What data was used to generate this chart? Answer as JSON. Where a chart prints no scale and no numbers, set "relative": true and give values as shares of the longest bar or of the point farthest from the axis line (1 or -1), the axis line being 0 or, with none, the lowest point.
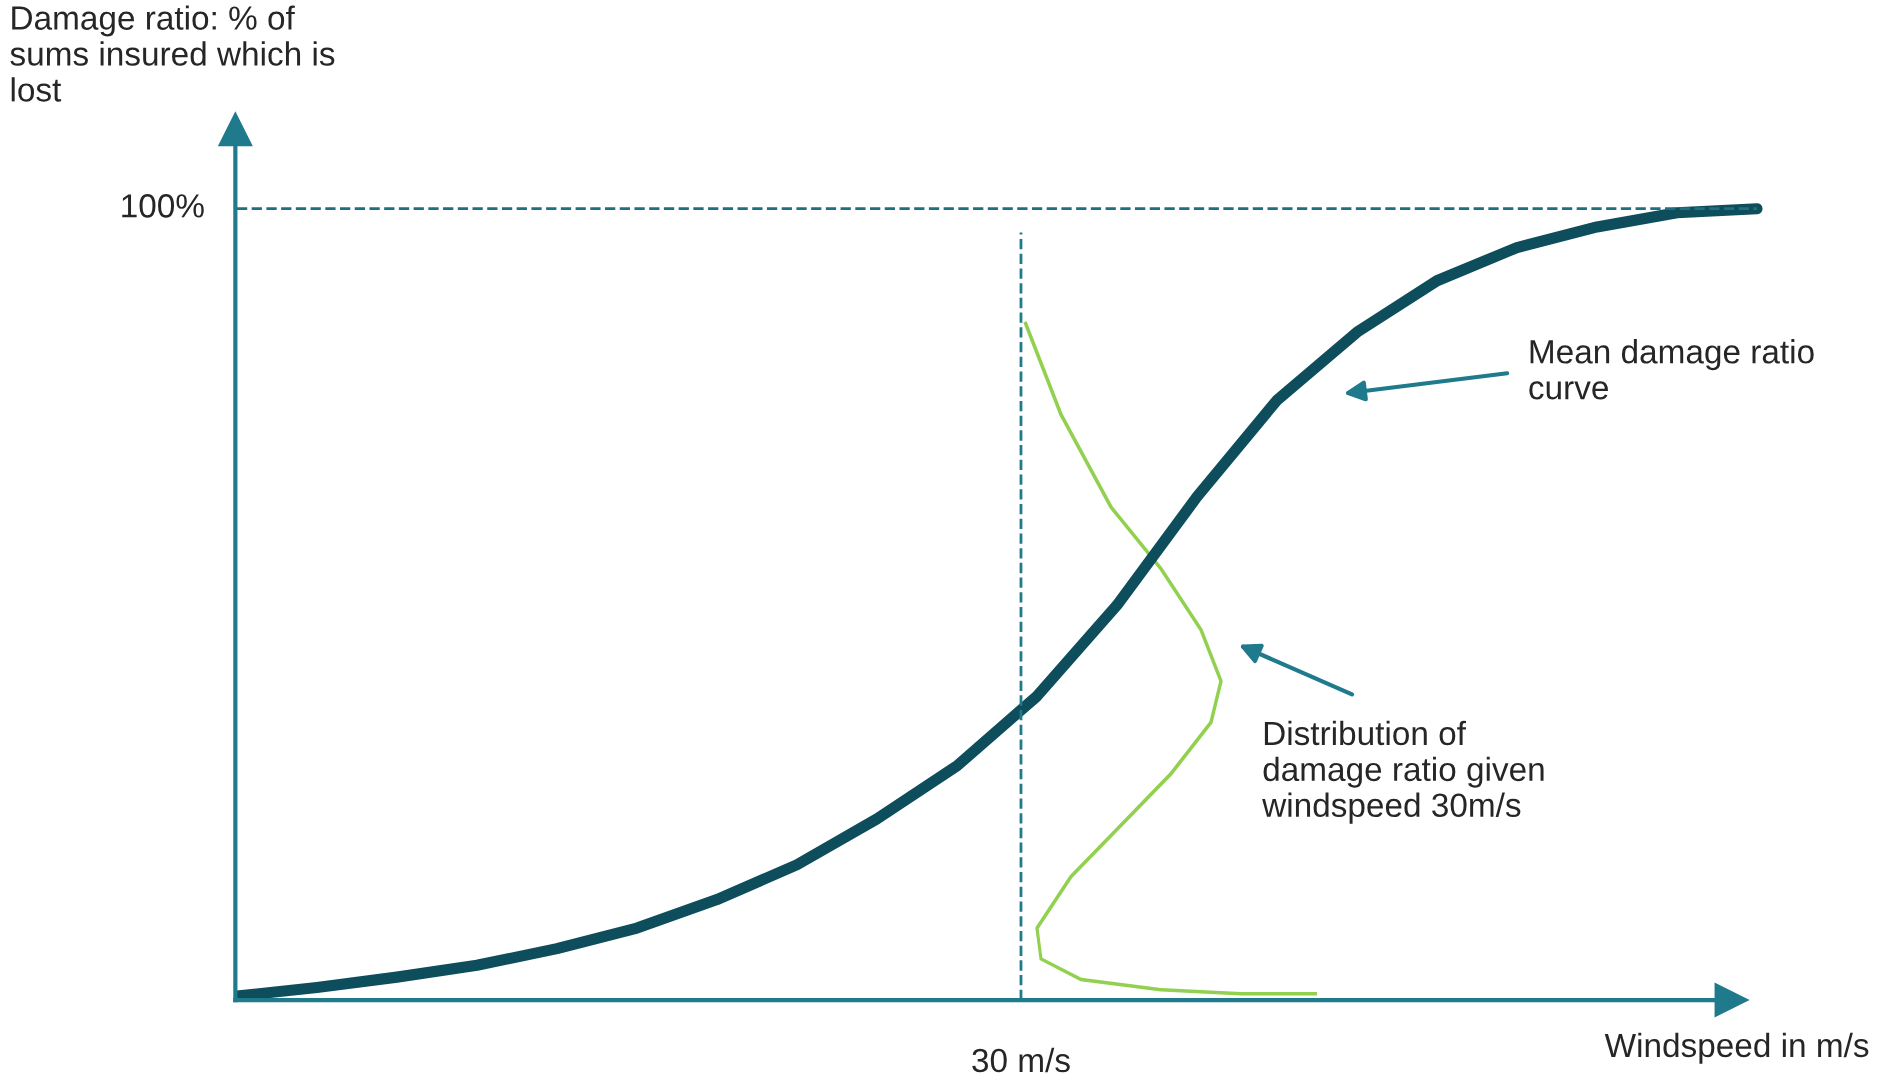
{
  "chart_data": {
    "type": "line",
    "relative": true,
    "ylabel": "Damage ratio: % of\nsums insured which is\nlost",
    "xlabel": "Windspeed in m/s",
    "categories": [
      null,
      null,
      null,
      null,
      null,
      null,
      null,
      null,
      null,
      null,
      null,
      null,
      null,
      null,
      null,
      null,
      null,
      null,
      null,
      null
    ],
    "series": [
      {
        "color": "#0e4d5c",
        "values": [
          0.005,
          0.016,
          0.029,
          0.044,
          0.065,
          0.091,
          0.127,
          0.171,
          0.229,
          0.296,
          0.384,
          0.499,
          0.636,
          0.758,
          0.844,
          0.909,
          0.951,
          0.977,
          0.995,
          1.0
        ]
      }
    ],
    "ref_lines": [
      {
        "axis": "y",
        "value": 1,
        "label": "100%",
        "color": "#1f6f80",
        "line_style": "dashed"
      }
    ],
    "annotations": [
      "30 m/s",
      "Mean damage ratio\ncurve",
      "Distribution of\ndamage ratio given\nwindspeed 30m/s"
    ],
    "marker": "none",
    "line_style": "solid"
  }
}
